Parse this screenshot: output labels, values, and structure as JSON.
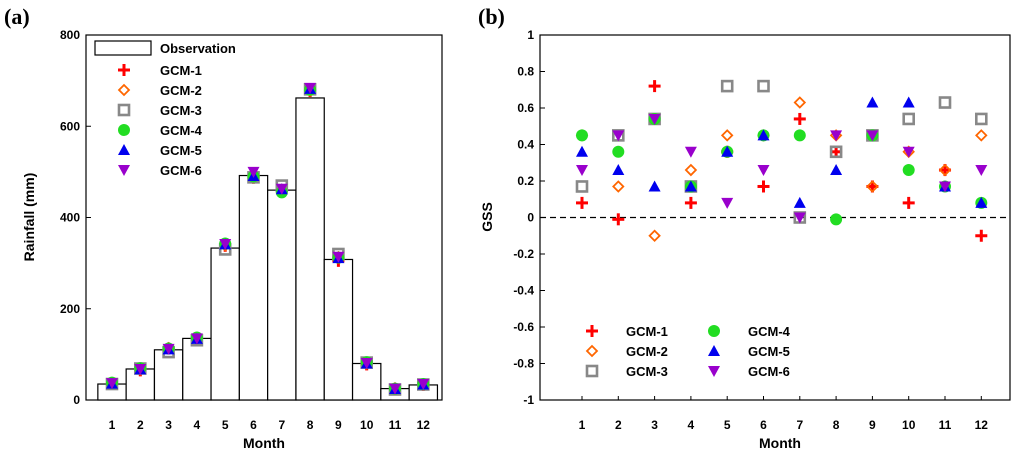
{
  "chart_data": [
    {
      "type": "bar",
      "panel_label": "(a)",
      "xlabel": "Month",
      "ylabel": "Rainfall (mm)",
      "ylim": [
        0,
        800
      ],
      "yticks": [
        0,
        200,
        400,
        600,
        800
      ],
      "categories": [
        "1",
        "2",
        "3",
        "4",
        "5",
        "6",
        "7",
        "8",
        "9",
        "10",
        "11",
        "12"
      ],
      "observation": {
        "name": "Observation",
        "values": [
          35,
          68,
          110,
          135,
          333,
          492,
          460,
          662,
          308,
          80,
          25,
          33
        ]
      },
      "series": [
        {
          "name": "GCM-1",
          "color": "#ff0000",
          "marker": "plus",
          "values": [
            36,
            65,
            113,
            133,
            338,
            487,
            458,
            677,
            305,
            78,
            24,
            33
          ]
        },
        {
          "name": "GCM-2",
          "color": "#ff6600",
          "marker": "diamond-open",
          "values": [
            37,
            67,
            114,
            136,
            339,
            492,
            461,
            678,
            313,
            80,
            26,
            34
          ]
        },
        {
          "name": "GCM-3",
          "color": "#888888",
          "marker": "square-open",
          "values": [
            35,
            69,
            105,
            131,
            330,
            488,
            470,
            681,
            320,
            82,
            23,
            34
          ]
        },
        {
          "name": "GCM-4",
          "color": "#22dd22",
          "marker": "circle",
          "values": [
            38,
            70,
            113,
            137,
            343,
            490,
            455,
            680,
            312,
            83,
            25,
            35
          ]
        },
        {
          "name": "GCM-5",
          "color": "#0000ee",
          "marker": "triangle-up",
          "values": [
            36,
            67,
            111,
            134,
            341,
            491,
            462,
            682,
            311,
            80,
            24,
            34
          ]
        },
        {
          "name": "GCM-6",
          "color": "#9900cc",
          "marker": "triangle-down",
          "values": [
            37,
            68,
            112,
            135,
            342,
            500,
            463,
            684,
            314,
            81,
            25,
            35
          ]
        }
      ]
    },
    {
      "type": "scatter",
      "panel_label": "(b)",
      "xlabel": "Month",
      "ylabel": "GSS",
      "ylim": [
        -1,
        1
      ],
      "yticks": [
        "-1",
        "-0.8",
        "-0.6",
        "-0.4",
        "-0.2",
        "0",
        "0.2",
        "0.4",
        "0.6",
        "0.8",
        "1"
      ],
      "categories": [
        "1",
        "2",
        "3",
        "4",
        "5",
        "6",
        "7",
        "8",
        "9",
        "10",
        "11",
        "12"
      ],
      "reference_line": 0,
      "series": [
        {
          "name": "GCM-1",
          "color": "#ff0000",
          "marker": "plus",
          "values": [
            0.08,
            -0.01,
            0.72,
            0.08,
            0.36,
            0.17,
            0.54,
            0.36,
            0.17,
            0.08,
            0.26,
            -0.1
          ]
        },
        {
          "name": "GCM-2",
          "color": "#ff6600",
          "marker": "diamond-open",
          "values": [
            0.45,
            0.17,
            -0.1,
            0.26,
            0.45,
            0.45,
            0.63,
            0.45,
            0.17,
            0.36,
            0.26,
            0.45
          ]
        },
        {
          "name": "GCM-3",
          "color": "#888888",
          "marker": "square-open",
          "values": [
            0.17,
            0.45,
            0.54,
            0.17,
            0.72,
            0.72,
            0.0,
            0.36,
            0.45,
            0.54,
            0.63,
            0.54
          ]
        },
        {
          "name": "GCM-4",
          "color": "#22dd22",
          "marker": "circle",
          "values": [
            0.45,
            0.36,
            0.54,
            0.17,
            0.36,
            0.45,
            0.45,
            -0.01,
            0.45,
            0.26,
            0.17,
            0.08
          ]
        },
        {
          "name": "GCM-5",
          "color": "#0000ee",
          "marker": "triangle-up",
          "values": [
            0.36,
            0.26,
            0.17,
            0.17,
            0.36,
            0.45,
            0.08,
            0.26,
            0.63,
            0.63,
            0.17,
            0.08
          ]
        },
        {
          "name": "GCM-6",
          "color": "#9900cc",
          "marker": "triangle-down",
          "values": [
            0.26,
            0.45,
            0.54,
            0.36,
            0.08,
            0.26,
            0.0,
            0.45,
            0.45,
            0.36,
            0.17,
            0.26
          ]
        }
      ]
    }
  ]
}
